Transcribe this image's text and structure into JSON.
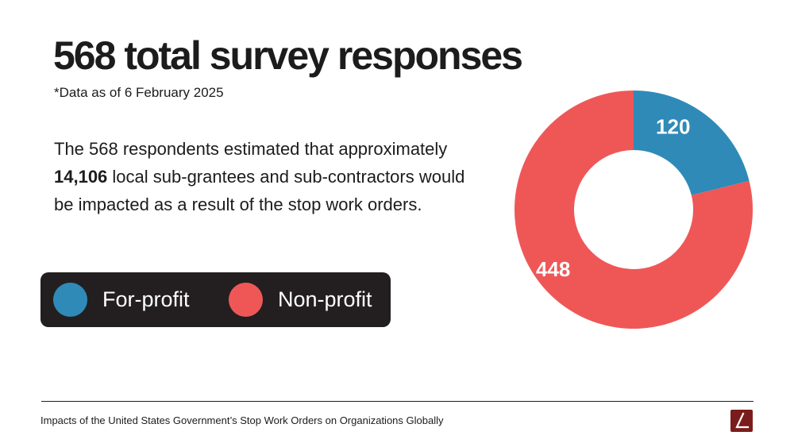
{
  "header": {
    "title": "568 total survey responses",
    "note": "*Data as of 6 February 2025"
  },
  "body": {
    "text_before": "The 568 respondents estimated that approximately ",
    "highlight": "14,106",
    "text_after": " local sub-grantees and sub-contractors would be impacted as a result of the stop work orders."
  },
  "chart_data": {
    "type": "pie",
    "title": "",
    "categories": [
      "For-profit",
      "Non-profit"
    ],
    "values": [
      120,
      448
    ],
    "colors": [
      "#2f8ab8",
      "#ef5757"
    ],
    "donut": true,
    "legend_position": "bottom-left",
    "data_labels": [
      "120",
      "448"
    ]
  },
  "legend": {
    "items": [
      {
        "label": "For-profit",
        "color": "#2f8ab8"
      },
      {
        "label": "Non-profit",
        "color": "#ef5757"
      }
    ]
  },
  "footer": {
    "text": "Impacts of the United States Government’s Stop Work Orders on Organizations Globally",
    "logo_icon": "brand-logo-icon",
    "logo_color": "#7b1c1c"
  }
}
